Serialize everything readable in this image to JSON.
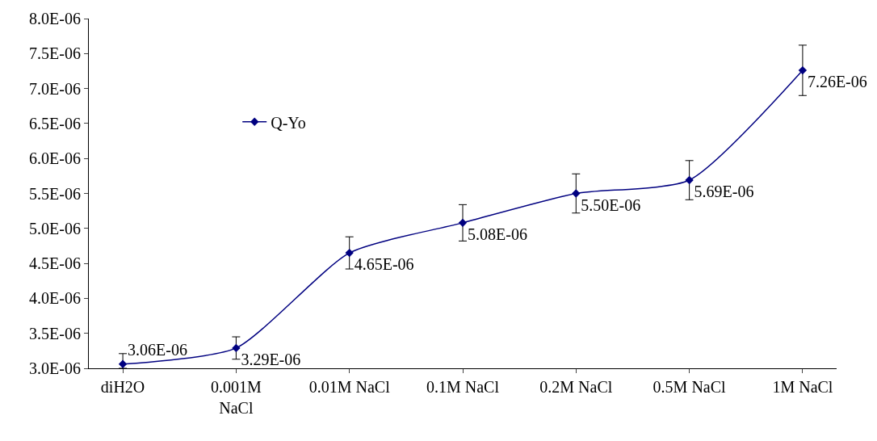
{
  "chart_data": {
    "type": "line",
    "categories": [
      "diH2O",
      "0.001M\nNaCl",
      "0.01M NaCl",
      "0.1M NaCl",
      "0.2M NaCl",
      "0.5M NaCl",
      "1M NaCl"
    ],
    "series": [
      {
        "name": "Q-Yo",
        "color": "#000080",
        "values": [
          3.06e-06,
          3.29e-06,
          4.65e-06,
          5.08e-06,
          5.5e-06,
          5.69e-06,
          7.26e-06
        ],
        "errors": [
          [
            3e-06,
            3.21e-06
          ],
          1.6e-07,
          2.3e-07,
          2.6e-07,
          2.8e-07,
          2.8e-07,
          3.6e-07
        ],
        "value_labels": [
          "3.06E-06",
          "3.29E-06",
          "4.65E-06",
          "5.08E-06",
          "5.50E-06",
          "5.69E-06",
          "7.26E-06"
        ]
      }
    ],
    "ylim": [
      3e-06,
      8e-06
    ],
    "yticks": [
      {
        "value": 3e-06,
        "label": "3.0E-06"
      },
      {
        "value": 3.5e-06,
        "label": "3.5E-06"
      },
      {
        "value": 4e-06,
        "label": "4.0E-06"
      },
      {
        "value": 4.5e-06,
        "label": "4.5E-06"
      },
      {
        "value": 5e-06,
        "label": "5.0E-06"
      },
      {
        "value": 5.5e-06,
        "label": "5.5E-06"
      },
      {
        "value": 6e-06,
        "label": "6.0E-06"
      },
      {
        "value": 6.5e-06,
        "label": "6.5E-06"
      },
      {
        "value": 7e-06,
        "label": "7.0E-06"
      },
      {
        "value": 7.5e-06,
        "label": "7.5E-06"
      },
      {
        "value": 8e-06,
        "label": "8.0E-06"
      }
    ],
    "legend": "top left",
    "marker": "diamond",
    "line_style": "solid"
  }
}
